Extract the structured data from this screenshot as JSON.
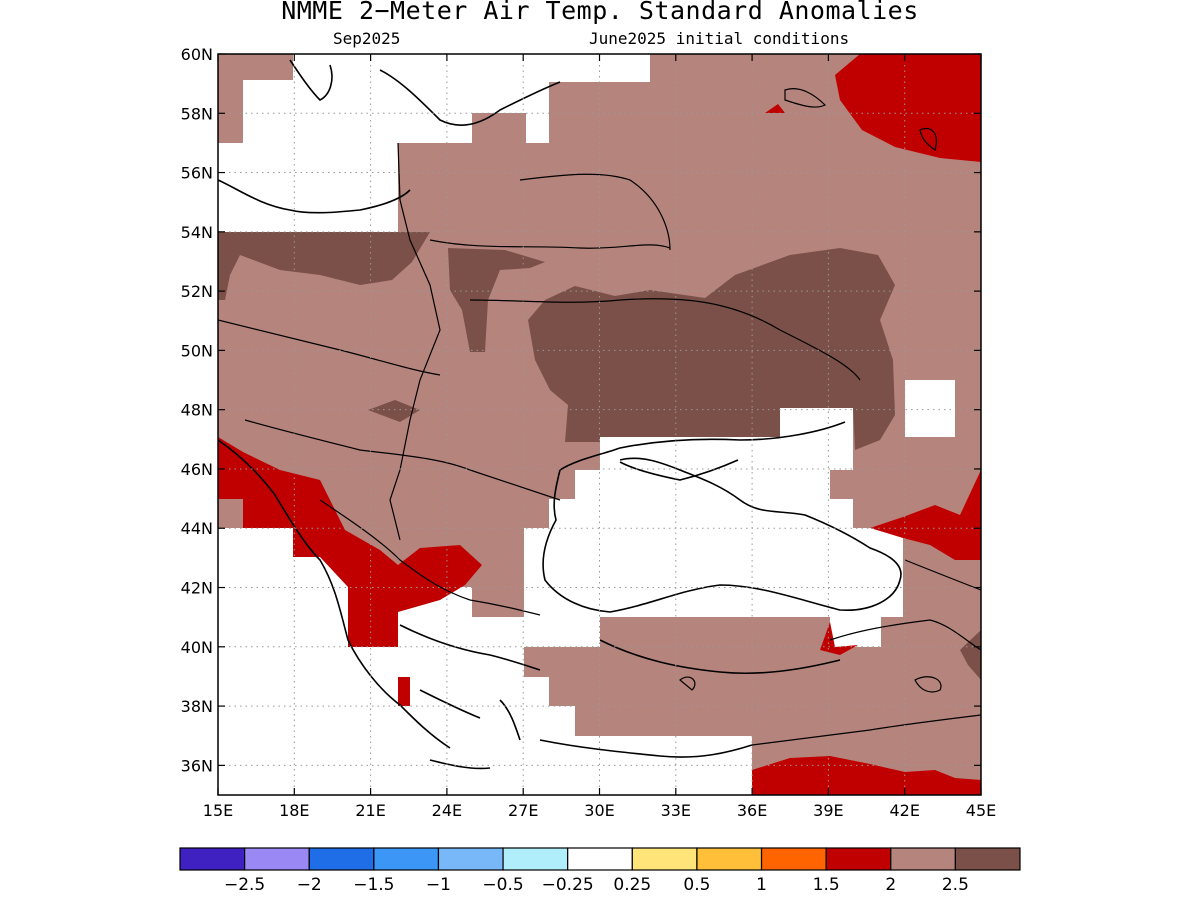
{
  "title": "NMME 2−Meter Air Temp. Standard Anomalies",
  "subtitle_left": "Sep2025",
  "subtitle_right": "June2025 initial conditions",
  "map": {
    "lon_range": [
      15,
      45
    ],
    "lat_range": [
      35,
      60
    ],
    "lat_ticks": [
      "60N",
      "58N",
      "56N",
      "54N",
      "52N",
      "50N",
      "48N",
      "46N",
      "44N",
      "42N",
      "40N",
      "38N",
      "36N"
    ],
    "lon_ticks": [
      "15E",
      "18E",
      "21E",
      "24E",
      "27E",
      "30E",
      "33E",
      "36E",
      "39E",
      "42E",
      "45E"
    ],
    "grid": "dotted",
    "colors": {
      "anom_2_to_2_5": "#b5847c",
      "anom_above_2_5": "#7a5048",
      "anom_1_5_to_2": "#c00000",
      "coastline": "#000000",
      "no_signal": "#ffffff"
    }
  },
  "colorbar": {
    "colors": [
      "#3f20c0",
      "#9a88f5",
      "#1f6ee8",
      "#3c96f5",
      "#78b8f8",
      "#b0eefb",
      "#ffffff",
      "#ffe47a",
      "#ffbf38",
      "#ff6400",
      "#c00000",
      "#b5847c",
      "#7a5048"
    ],
    "labels": [
      "−2.5",
      "−2",
      "−1.5",
      "−1",
      "−0.5",
      "−0.25",
      "0.25",
      "0.5",
      "1",
      "1.5",
      "2",
      "2.5"
    ]
  }
}
